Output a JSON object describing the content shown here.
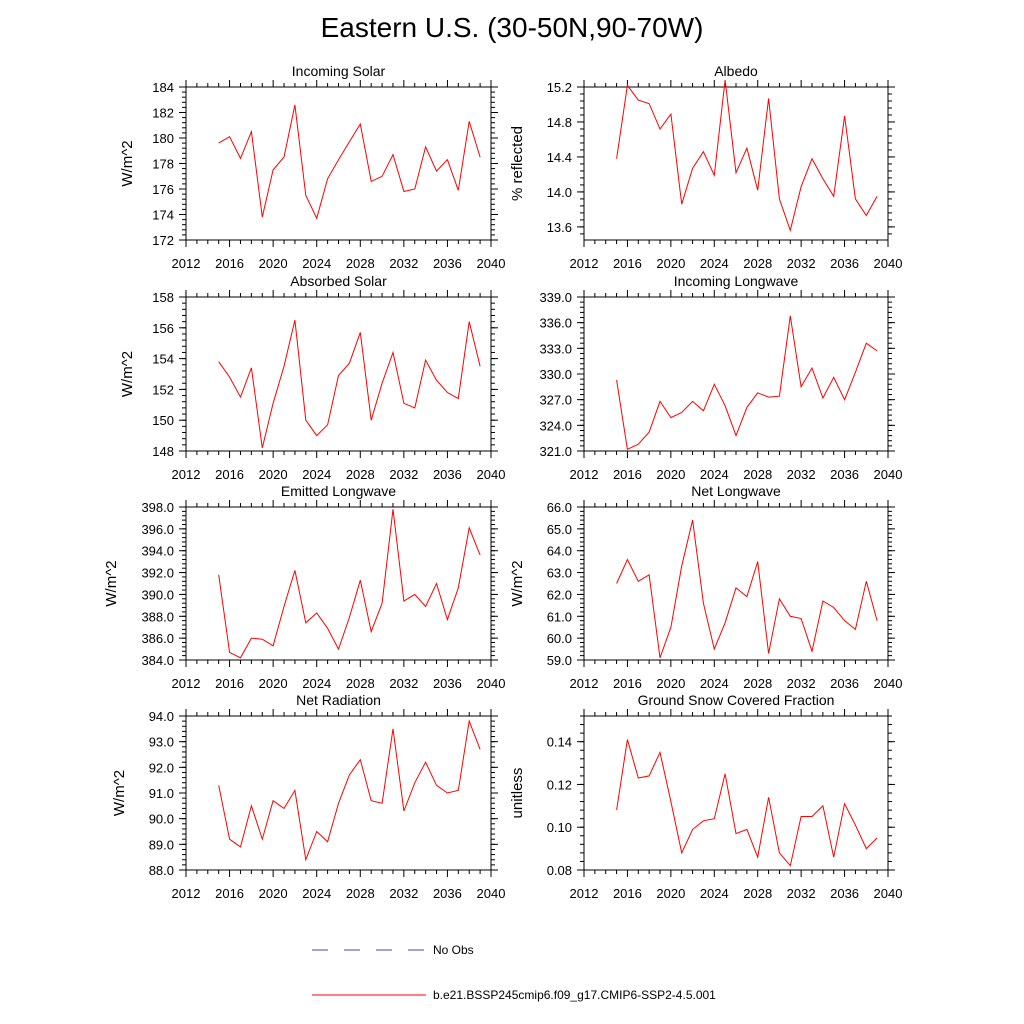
{
  "title": "Eastern U.S. (30-50N,90-70W)",
  "legend": [
    {
      "label": "No Obs",
      "color": "#4040c0",
      "dash": true
    },
    {
      "label": "b.e21.BSSP245cmip6.f09_g17.CMIP6-SSP2-4.5.001",
      "color": "#ff0000",
      "dash": false
    }
  ],
  "chart_data": [
    {
      "type": "line",
      "title": "Incoming Solar",
      "ylabel": "W/m^2",
      "xlim": [
        2012,
        2040
      ],
      "xticks": [
        "2012",
        "2016",
        "2020",
        "2024",
        "2028",
        "2032",
        "2036",
        "2040"
      ],
      "ylim": [
        172,
        184
      ],
      "yticks": [
        "172",
        "174",
        "176",
        "178",
        "180",
        "182",
        "184"
      ],
      "x": [
        2015,
        2016,
        2017,
        2018,
        2019,
        2020,
        2021,
        2022,
        2023,
        2024,
        2025,
        2026,
        2027,
        2028,
        2029,
        2030,
        2031,
        2032,
        2033,
        2034,
        2035,
        2036,
        2037,
        2038,
        2039
      ],
      "series": [
        {
          "color": "#ff0000",
          "values": [
            179.6,
            180.1,
            178.4,
            180.5,
            173.8,
            177.5,
            178.5,
            182.6,
            175.5,
            173.7,
            176.8,
            178.3,
            179.7,
            181.1,
            176.6,
            177.0,
            178.7,
            175.8,
            176.0,
            179.3,
            177.4,
            178.3,
            175.9,
            181.3,
            178.5
          ]
        }
      ]
    },
    {
      "type": "line",
      "title": "Albedo",
      "ylabel": "% reflected",
      "xlim": [
        2012,
        2040
      ],
      "xticks": [
        "2012",
        "2016",
        "2020",
        "2024",
        "2028",
        "2032",
        "2036",
        "2040"
      ],
      "ylim": [
        13.45,
        15.2
      ],
      "yticks": [
        "13.6",
        "14.0",
        "14.4",
        "14.8",
        "15.2"
      ],
      "ytick_values": [
        13.6,
        14.0,
        14.4,
        14.8,
        15.2
      ],
      "x": [
        2015,
        2016,
        2017,
        2018,
        2019,
        2020,
        2021,
        2022,
        2023,
        2024,
        2025,
        2026,
        2027,
        2028,
        2029,
        2030,
        2031,
        2032,
        2033,
        2034,
        2035,
        2036,
        2037,
        2038,
        2039
      ],
      "series": [
        {
          "color": "#ff0000",
          "values": [
            14.38,
            15.22,
            15.05,
            15.01,
            14.72,
            14.89,
            13.86,
            14.27,
            14.46,
            14.19,
            15.28,
            14.22,
            14.5,
            14.02,
            15.07,
            13.92,
            13.56,
            14.06,
            14.38,
            14.15,
            13.95,
            14.87,
            13.92,
            13.73,
            13.95
          ]
        }
      ]
    },
    {
      "type": "line",
      "title": "Absorbed Solar",
      "ylabel": "W/m^2",
      "xlim": [
        2012,
        2040
      ],
      "xticks": [
        "2012",
        "2016",
        "2020",
        "2024",
        "2028",
        "2032",
        "2036",
        "2040"
      ],
      "ylim": [
        148,
        158
      ],
      "yticks": [
        "148",
        "150",
        "152",
        "154",
        "156",
        "158"
      ],
      "x": [
        2015,
        2016,
        2017,
        2018,
        2019,
        2020,
        2021,
        2022,
        2023,
        2024,
        2025,
        2026,
        2027,
        2028,
        2029,
        2030,
        2031,
        2032,
        2033,
        2034,
        2035,
        2036,
        2037,
        2038,
        2039
      ],
      "series": [
        {
          "color": "#ff0000",
          "values": [
            153.8,
            152.8,
            151.5,
            153.4,
            148.2,
            151.1,
            153.5,
            156.5,
            150.0,
            149.0,
            149.7,
            152.9,
            153.7,
            155.7,
            150.0,
            152.4,
            154.4,
            151.1,
            150.8,
            153.9,
            152.6,
            151.8,
            151.4,
            156.4,
            153.5
          ]
        }
      ]
    },
    {
      "type": "line",
      "title": "Incoming Longwave",
      "ylabel": "",
      "xlim": [
        2012,
        2040
      ],
      "xticks": [
        "2012",
        "2016",
        "2020",
        "2024",
        "2028",
        "2032",
        "2036",
        "2040"
      ],
      "ylim": [
        321,
        339
      ],
      "yticks": [
        "321.0",
        "324.0",
        "327.0",
        "330.0",
        "333.0",
        "336.0",
        "339.0"
      ],
      "ytick_values": [
        321,
        324,
        327,
        330,
        333,
        336,
        339
      ],
      "x": [
        2015,
        2016,
        2017,
        2018,
        2019,
        2020,
        2021,
        2022,
        2023,
        2024,
        2025,
        2026,
        2027,
        2028,
        2029,
        2030,
        2031,
        2032,
        2033,
        2034,
        2035,
        2036,
        2037,
        2038,
        2039
      ],
      "series": [
        {
          "color": "#ff0000",
          "values": [
            329.3,
            321.2,
            321.8,
            323.2,
            326.8,
            324.9,
            325.5,
            326.8,
            325.7,
            328.8,
            326.3,
            322.8,
            326.1,
            327.8,
            327.3,
            327.4,
            336.8,
            328.5,
            330.7,
            327.2,
            329.6,
            327.0,
            330.2,
            333.6,
            332.7
          ]
        }
      ]
    },
    {
      "type": "line",
      "title": "Emitted Longwave",
      "ylabel": "W/m^2",
      "xlim": [
        2012,
        2040
      ],
      "xticks": [
        "2012",
        "2016",
        "2020",
        "2024",
        "2028",
        "2032",
        "2036",
        "2040"
      ],
      "ylim": [
        384,
        398
      ],
      "yticks": [
        "384.0",
        "386.0",
        "388.0",
        "390.0",
        "392.0",
        "394.0",
        "396.0",
        "398.0"
      ],
      "ytick_values": [
        384,
        386,
        388,
        390,
        392,
        394,
        396,
        398
      ],
      "x": [
        2015,
        2016,
        2017,
        2018,
        2019,
        2020,
        2021,
        2022,
        2023,
        2024,
        2025,
        2026,
        2027,
        2028,
        2029,
        2030,
        2031,
        2032,
        2033,
        2034,
        2035,
        2036,
        2037,
        2038,
        2039
      ],
      "series": [
        {
          "color": "#ff0000",
          "values": [
            391.8,
            384.7,
            384.2,
            386.0,
            385.9,
            385.3,
            388.9,
            392.2,
            387.4,
            388.3,
            386.9,
            385.0,
            387.9,
            391.3,
            386.6,
            389.2,
            397.8,
            389.4,
            390.0,
            388.9,
            391.0,
            387.7,
            390.6,
            396.1,
            393.6
          ]
        }
      ]
    },
    {
      "type": "line",
      "title": "Net Longwave",
      "ylabel": "W/m^2",
      "xlim": [
        2012,
        2040
      ],
      "xticks": [
        "2012",
        "2016",
        "2020",
        "2024",
        "2028",
        "2032",
        "2036",
        "2040"
      ],
      "ylim": [
        59,
        66
      ],
      "yticks": [
        "59.0",
        "60.0",
        "61.0",
        "62.0",
        "63.0",
        "64.0",
        "65.0",
        "66.0"
      ],
      "ytick_values": [
        59,
        60,
        61,
        62,
        63,
        64,
        65,
        66
      ],
      "x": [
        2015,
        2016,
        2017,
        2018,
        2019,
        2020,
        2021,
        2022,
        2023,
        2024,
        2025,
        2026,
        2027,
        2028,
        2029,
        2030,
        2031,
        2032,
        2033,
        2034,
        2035,
        2036,
        2037,
        2038,
        2039
      ],
      "series": [
        {
          "color": "#ff0000",
          "values": [
            62.5,
            63.6,
            62.6,
            62.9,
            59.1,
            60.5,
            63.3,
            65.4,
            61.6,
            59.5,
            60.7,
            62.3,
            61.9,
            63.5,
            59.3,
            61.8,
            61.0,
            60.9,
            59.4,
            61.7,
            61.4,
            60.8,
            60.4,
            62.6,
            60.8
          ]
        }
      ]
    },
    {
      "type": "line",
      "title": "Net Radiation",
      "ylabel": "W/m^2",
      "xlim": [
        2012,
        2040
      ],
      "xticks": [
        "2012",
        "2016",
        "2020",
        "2024",
        "2028",
        "2032",
        "2036",
        "2040"
      ],
      "ylim": [
        88,
        94
      ],
      "yticks": [
        "88.0",
        "89.0",
        "90.0",
        "91.0",
        "92.0",
        "93.0",
        "94.0"
      ],
      "ytick_values": [
        88,
        89,
        90,
        91,
        92,
        93,
        94
      ],
      "x": [
        2015,
        2016,
        2017,
        2018,
        2019,
        2020,
        2021,
        2022,
        2023,
        2024,
        2025,
        2026,
        2027,
        2028,
        2029,
        2030,
        2031,
        2032,
        2033,
        2034,
        2035,
        2036,
        2037,
        2038,
        2039
      ],
      "series": [
        {
          "color": "#ff0000",
          "values": [
            91.3,
            89.2,
            88.9,
            90.5,
            89.2,
            90.7,
            90.4,
            91.1,
            88.4,
            89.5,
            89.1,
            90.6,
            91.7,
            92.3,
            90.7,
            90.6,
            93.5,
            90.3,
            91.4,
            92.2,
            91.3,
            91.0,
            91.1,
            93.8,
            92.7
          ]
        }
      ]
    },
    {
      "type": "line",
      "title": "Ground Snow Covered Fraction",
      "ylabel": "unitless",
      "xlim": [
        2012,
        2040
      ],
      "xticks": [
        "2012",
        "2016",
        "2020",
        "2024",
        "2028",
        "2032",
        "2036",
        "2040"
      ],
      "ylim": [
        0.08,
        0.152
      ],
      "yticks": [
        "0.08",
        "0.10",
        "0.12",
        "0.14"
      ],
      "ytick_values": [
        0.08,
        0.1,
        0.12,
        0.14
      ],
      "x": [
        2015,
        2016,
        2017,
        2018,
        2019,
        2020,
        2021,
        2022,
        2023,
        2024,
        2025,
        2026,
        2027,
        2028,
        2029,
        2030,
        2031,
        2032,
        2033,
        2034,
        2035,
        2036,
        2037,
        2038,
        2039
      ],
      "series": [
        {
          "color": "#ff0000",
          "values": [
            0.108,
            0.141,
            0.123,
            0.124,
            0.135,
            0.112,
            0.088,
            0.099,
            0.103,
            0.104,
            0.125,
            0.097,
            0.099,
            0.086,
            0.114,
            0.088,
            0.082,
            0.105,
            0.105,
            0.11,
            0.086,
            0.111,
            0.101,
            0.09,
            0.095
          ]
        }
      ]
    }
  ]
}
